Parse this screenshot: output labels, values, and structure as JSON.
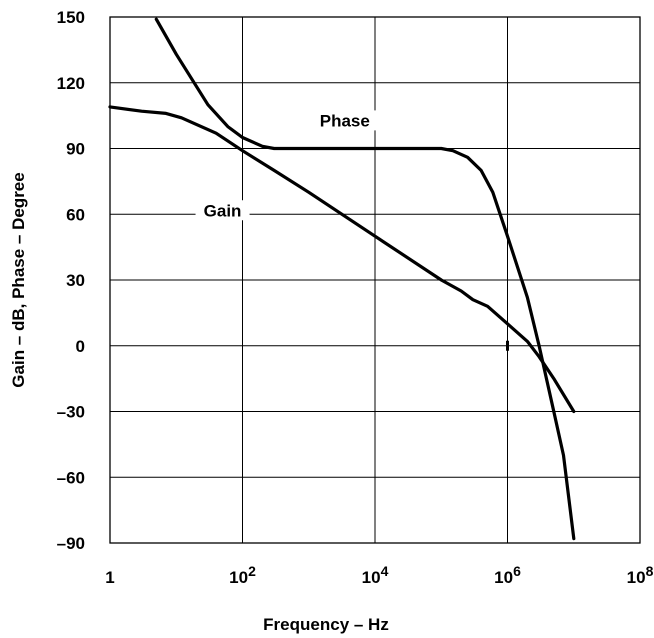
{
  "chart_data": {
    "type": "line",
    "x_scale": "log",
    "xlabel": "Frequency – Hz",
    "ylabel": "Gain – dB, Phase – Degree",
    "xlim": [
      1,
      100000000
    ],
    "ylim": [
      -90,
      150
    ],
    "grid": true,
    "legend": "none (inline series labels)",
    "x_ticks": [
      {
        "value": 1,
        "base": "1",
        "exp": ""
      },
      {
        "value": 100,
        "base": "10",
        "exp": "2"
      },
      {
        "value": 10000,
        "base": "10",
        "exp": "4"
      },
      {
        "value": 1000000,
        "base": "10",
        "exp": "6"
      },
      {
        "value": 100000000,
        "base": "10",
        "exp": "8"
      }
    ],
    "y_ticks": [
      {
        "value": 150,
        "label": "150"
      },
      {
        "value": 120,
        "label": "120"
      },
      {
        "value": 90,
        "label": "90"
      },
      {
        "value": 60,
        "label": "60"
      },
      {
        "value": 30,
        "label": "30"
      },
      {
        "value": 0,
        "label": "0"
      },
      {
        "value": -30,
        "label": "–30"
      },
      {
        "value": -60,
        "label": "–60"
      },
      {
        "value": -90,
        "label": "–90"
      }
    ],
    "series": [
      {
        "name": "Gain",
        "label_at": {
          "x": 50,
          "y": 60
        },
        "points": [
          [
            1,
            109
          ],
          [
            3,
            107
          ],
          [
            7,
            106
          ],
          [
            12,
            104
          ],
          [
            40,
            97
          ],
          [
            100,
            89
          ],
          [
            300,
            80
          ],
          [
            1000,
            70
          ],
          [
            10000,
            50
          ],
          [
            100000,
            30
          ],
          [
            200000,
            25
          ],
          [
            300000,
            21
          ],
          [
            500000,
            18
          ],
          [
            1000000,
            10
          ],
          [
            2000000,
            2
          ],
          [
            3000000,
            -5
          ],
          [
            5000000,
            -15
          ],
          [
            10000000,
            -30
          ]
        ]
      },
      {
        "name": "Phase",
        "label_at": {
          "x": 3500,
          "y": 101
        },
        "points": [
          [
            5,
            149
          ],
          [
            10,
            133
          ],
          [
            30,
            110
          ],
          [
            60,
            100
          ],
          [
            100,
            95
          ],
          [
            200,
            91
          ],
          [
            300,
            90
          ],
          [
            10000,
            90
          ],
          [
            100000,
            90
          ],
          [
            150000,
            89
          ],
          [
            250000,
            86
          ],
          [
            400000,
            80
          ],
          [
            600000,
            70
          ],
          [
            1000000,
            50
          ],
          [
            2000000,
            22
          ],
          [
            3000000,
            0
          ],
          [
            5000000,
            -30
          ],
          [
            7000000,
            -50
          ],
          [
            10000000,
            -88
          ]
        ]
      }
    ],
    "marker": {
      "x": 1000000,
      "y": 0
    }
  }
}
